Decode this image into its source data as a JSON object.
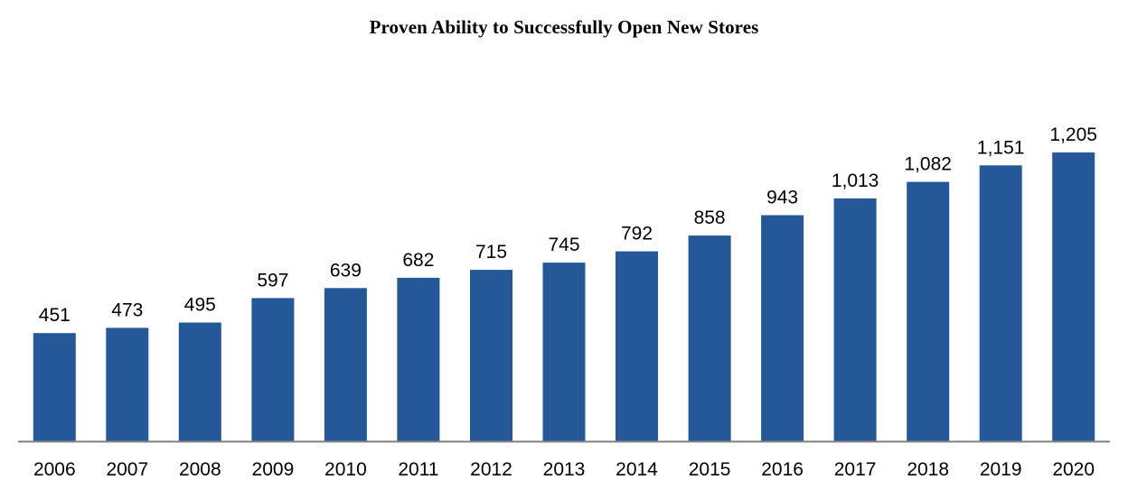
{
  "chart_data": {
    "type": "bar",
    "title": "Proven Ability to Successfully Open New Stores",
    "xlabel": "",
    "ylabel": "",
    "categories": [
      "2006",
      "2007",
      "2008",
      "2009",
      "2010",
      "2011",
      "2012",
      "2013",
      "2014",
      "2015",
      "2016",
      "2017",
      "2018",
      "2019",
      "2020"
    ],
    "values": [
      451,
      473,
      495,
      597,
      639,
      682,
      715,
      745,
      792,
      858,
      943,
      1013,
      1082,
      1151,
      1205
    ],
    "value_labels": [
      "451",
      "473",
      "495",
      "597",
      "639",
      "682",
      "715",
      "745",
      "792",
      "858",
      "943",
      "1,013",
      "1,082",
      "1,151",
      "1,205"
    ],
    "ylim": [
      0,
      1320
    ],
    "grid": false,
    "legend": "none",
    "colors": {
      "bar": "#245898",
      "axis": "#808080",
      "text": "#000000"
    }
  }
}
